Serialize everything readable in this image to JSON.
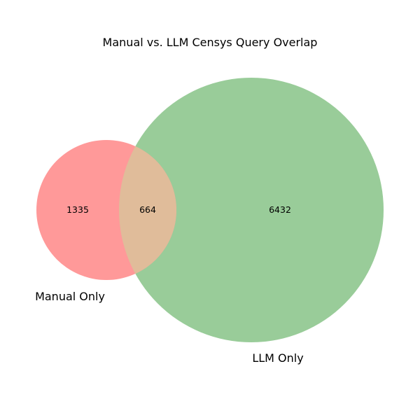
{
  "chart_data": {
    "type": "venn",
    "title": "Manual vs. LLM Censys Query Overlap",
    "sets": [
      {
        "name": "Manual Only",
        "only": 1335,
        "color": "#ff9999"
      },
      {
        "name": "LLM Only",
        "only": 6432,
        "color": "#99cc99"
      }
    ],
    "intersection": 664,
    "intersection_color": "#e0bc9a"
  }
}
